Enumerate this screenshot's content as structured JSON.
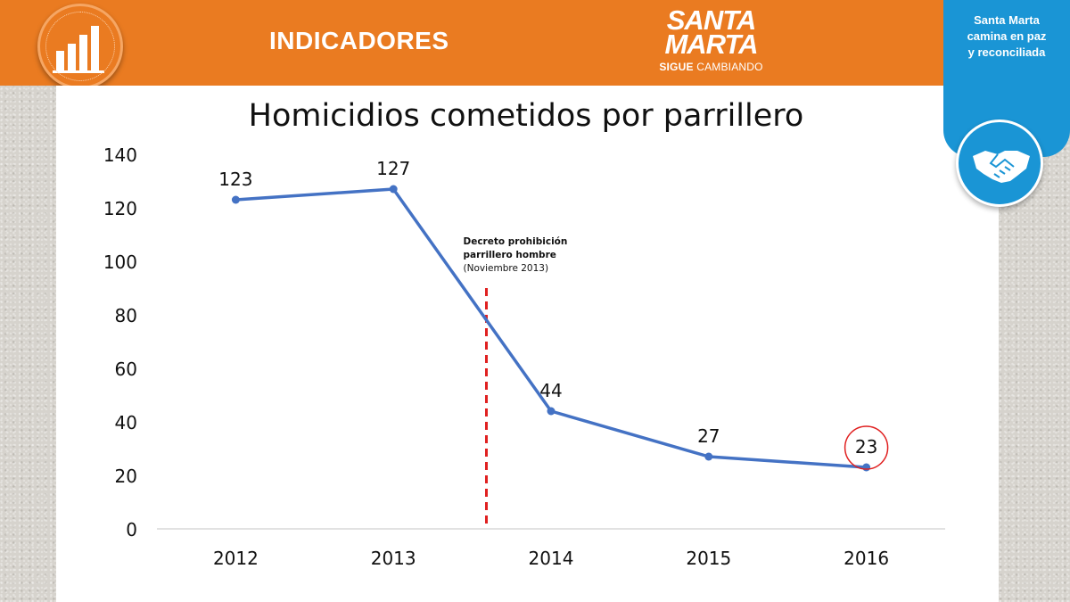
{
  "header": {
    "title": "INDICADORES",
    "logo_line1": "SANTA",
    "logo_line2": "MARTA",
    "logo_sub_bold": "SIGUE",
    "logo_sub_rest": "CAMBIANDO",
    "icon": "bar-chart-icon"
  },
  "side_panel": {
    "line1": "Santa Marta",
    "line2": "camina en paz",
    "line3": "y reconciliada",
    "icon": "handshake-icon"
  },
  "colors": {
    "header": "#ea7b21",
    "side_panel": "#1a95d5",
    "series": "#4472c4",
    "marker_line": "#e02020",
    "highlight_circle": "#e02020"
  },
  "chart_data": {
    "type": "line",
    "title": "Homicidios cometidos por parrillero",
    "categories": [
      "2012",
      "2013",
      "2014",
      "2015",
      "2016"
    ],
    "series": [
      {
        "name": "Homicidios",
        "values": [
          123,
          127,
          44,
          27,
          23
        ]
      }
    ],
    "data_labels": [
      "123",
      "127",
      "44",
      "27",
      "23"
    ],
    "ylim": [
      0,
      140
    ],
    "yticks": [
      0,
      20,
      40,
      60,
      80,
      100,
      120,
      140
    ],
    "xlabel": "",
    "ylabel": "",
    "grid": false,
    "highlighted_category": "2016",
    "annotation": {
      "line1": "Decreto prohibición",
      "line2": "parrillero hombre",
      "line3": "(Noviembre 2013)",
      "position_between": [
        "2013",
        "2014"
      ],
      "fraction": 0.59
    }
  }
}
